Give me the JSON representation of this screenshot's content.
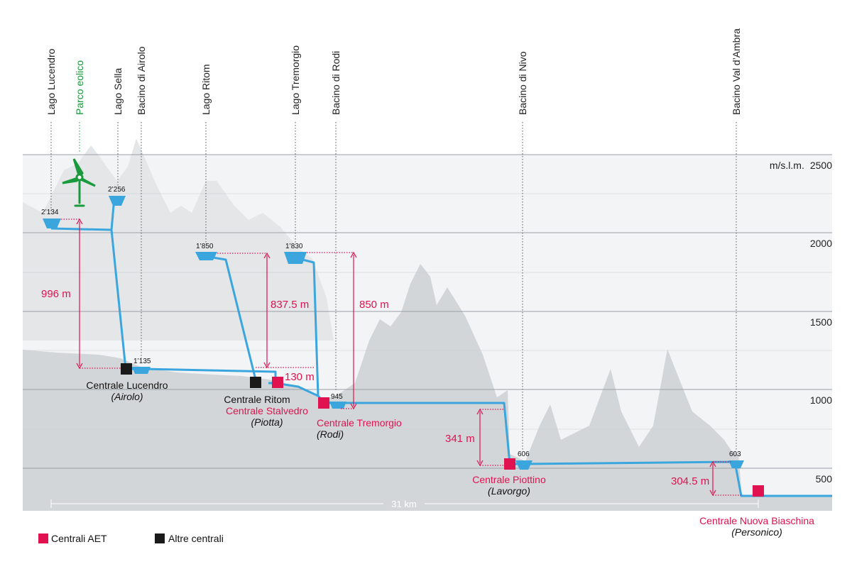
{
  "unit_label": "m/s.l.m.",
  "y_ticks": [
    {
      "label": "2500",
      "value": 2500
    },
    {
      "label": "2000",
      "value": 2000
    },
    {
      "label": "1500",
      "value": 1500
    },
    {
      "label": "1000",
      "value": 1000
    },
    {
      "label": "500",
      "value": 500
    }
  ],
  "sites": {
    "lago_lucendro": "Lago Lucendro",
    "parco_eolico": "Parco eolico",
    "lago_sella": "Lago Sella",
    "bacino_airolo": "Bacino di Airolo",
    "lago_ritom": "Lago Ritom",
    "lago_tremorgio": "Lago Tremorgio",
    "bacino_rodi": "Bacino di Rodi",
    "bacino_nivo": "Bacino di Nivo",
    "bacino_ambra": "Bacino Val d’Ambra"
  },
  "elevations": {
    "lucendro": "2’134",
    "sella": "2’256",
    "ritom": "1’850",
    "tremorgio": "1’830",
    "airolo": "1’135",
    "rodi": "945",
    "nivo": "606",
    "ambra": "603"
  },
  "drops": {
    "lucendro": "996 m",
    "ritom": "837.5 m",
    "stalvedro": "130 m",
    "tremorgio": "850 m",
    "piottino": "341 m",
    "biaschina": "304.5 m"
  },
  "plants": {
    "lucendro": {
      "name": "Centrale Lucendro",
      "location": "(Airolo)"
    },
    "ritom": {
      "name": "Centrale Ritom"
    },
    "stalvedro": {
      "name": "Centrale Stalvedro",
      "location": "(Piotta)"
    },
    "tremorgio": {
      "name": "Centrale Tremorgio",
      "location": "(Rodi)"
    },
    "piottino": {
      "name": "Centrale Piottino",
      "location": "(Lavorgo)"
    },
    "biaschina": {
      "name": "Centrale Nuova Biaschina",
      "location": "(Personico)"
    }
  },
  "distance": "31 km",
  "legend": {
    "aet": "Centrali AET",
    "other": "Altre centrali"
  },
  "colors": {
    "aet": "#e0124f",
    "other": "#1a1a1a",
    "water": "#3aa6dd",
    "wind": "#1a9a3c",
    "terrain_dark": "#d3d6d8",
    "terrain_light": "#e6e8ea"
  }
}
